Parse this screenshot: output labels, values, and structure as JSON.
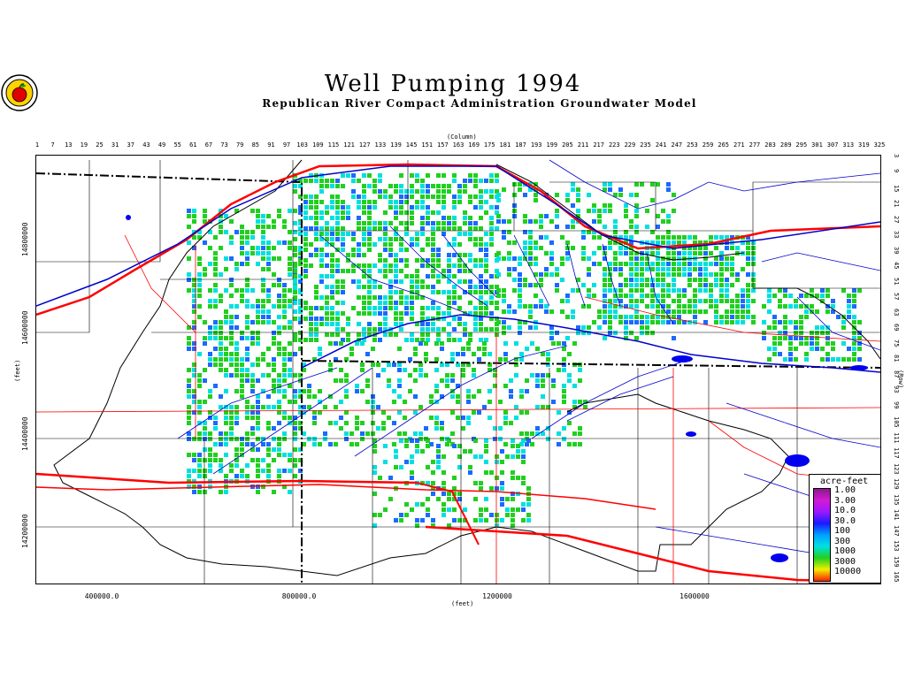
{
  "header": {
    "title": "Well Pumping 1994",
    "subtitle": "Republican River Compact Administration Groundwater Model"
  },
  "axes": {
    "column_title": "(Column)",
    "row_title": "(Row)",
    "x_title": "(feet)",
    "y_title": "(feet)",
    "columns": [
      "1",
      "7",
      "13",
      "19",
      "25",
      "31",
      "37",
      "43",
      "49",
      "55",
      "61",
      "67",
      "73",
      "79",
      "85",
      "91",
      "97",
      "103",
      "109",
      "115",
      "121",
      "127",
      "133",
      "139",
      "145",
      "151",
      "157",
      "163",
      "169",
      "175",
      "181",
      "187",
      "193",
      "199",
      "205",
      "211",
      "217",
      "223",
      "229",
      "235",
      "241",
      "247",
      "253",
      "259",
      "265",
      "271",
      "277",
      "283",
      "289",
      "295",
      "301",
      "307",
      "313",
      "319",
      "325"
    ],
    "rows": [
      "3",
      "9",
      "15",
      "21",
      "27",
      "33",
      "39",
      "45",
      "51",
      "57",
      "63",
      "69",
      "75",
      "81",
      "87",
      "93",
      "99",
      "105",
      "111",
      "117",
      "123",
      "129",
      "135",
      "141",
      "147",
      "153",
      "159",
      "165"
    ],
    "x_ticks": [
      "400000.0",
      "800000.0",
      "1200000",
      "1600000"
    ],
    "y_ticks": [
      "14800000",
      "14600000",
      "14400000",
      "14200000"
    ]
  },
  "legend": {
    "title": "acre-feet",
    "items": [
      "1.00",
      "3.00",
      "10.0",
      "30.0",
      "100",
      "300",
      "1000",
      "3000",
      "10000"
    ],
    "colors": [
      "#8b1a8b",
      "#d41ad4",
      "#9a1aff",
      "#1a1aff",
      "#00a0ff",
      "#00e0e0",
      "#20d020",
      "#f0f000",
      "#ff2000"
    ]
  },
  "map_colors": {
    "boundary": "#000000",
    "roads": "#ff0000",
    "streams": "#0000cc",
    "pumping_high": "#20d020",
    "pumping_mid": "#00e0e0",
    "pumping_low": "#1a6aff"
  }
}
